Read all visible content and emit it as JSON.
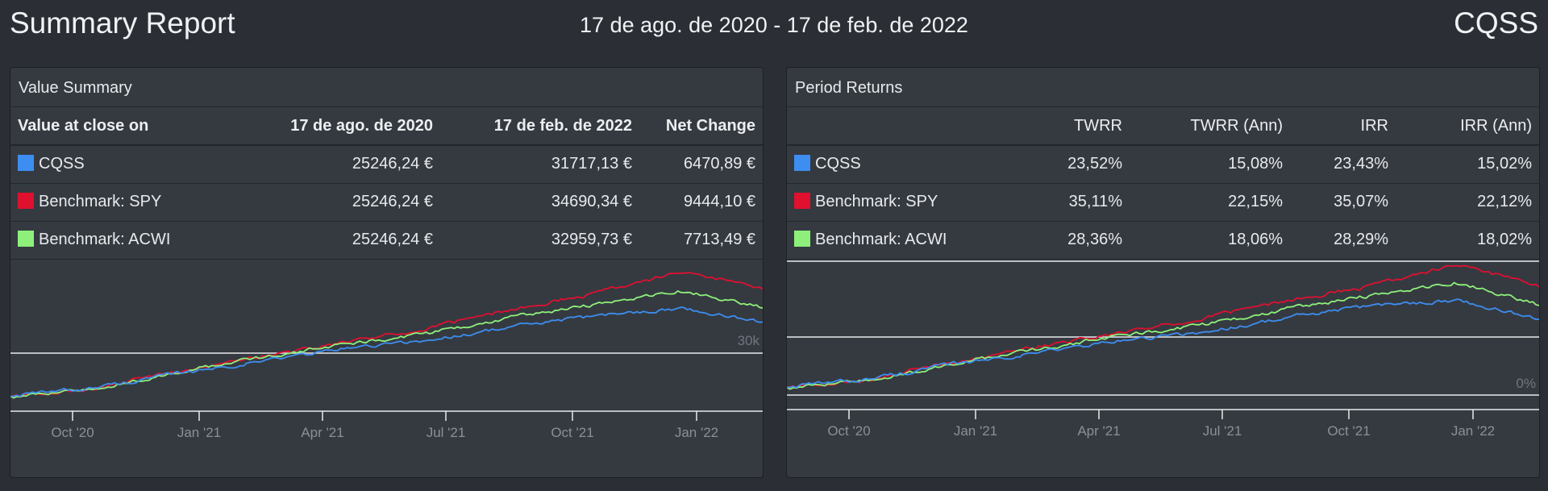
{
  "header": {
    "title": "Summary Report",
    "date_range": "17 de ago. de 2020 - 17 de feb. de 2022",
    "account": "CQSS"
  },
  "value_summary": {
    "title": "Value Summary",
    "columns": [
      "Value at close on",
      "17 de ago. de 2020",
      "17 de feb. de 2022",
      "Net Change"
    ],
    "rows": [
      {
        "name": "CQSS",
        "color": "#3d8ef0",
        "start": "25246,24 €",
        "end": "31717,13 €",
        "change": "6470,89 €"
      },
      {
        "name": "Benchmark: SPY",
        "color": "#e0102f",
        "start": "25246,24 €",
        "end": "34690,34 €",
        "change": "9444,10 €"
      },
      {
        "name": "Benchmark: ACWI",
        "color": "#8ef07a",
        "start": "25246,24 €",
        "end": "32959,73 €",
        "change": "7713,49 €"
      }
    ]
  },
  "period_returns": {
    "title": "Period Returns",
    "columns": [
      "",
      "TWRR",
      "TWRR (Ann)",
      "IRR",
      "IRR (Ann)"
    ],
    "rows": [
      {
        "name": "CQSS",
        "color": "#3d8ef0",
        "twrr": "23,52%",
        "twrr_ann": "15,08%",
        "irr": "23,43%",
        "irr_ann": "15,02%"
      },
      {
        "name": "Benchmark: SPY",
        "color": "#e0102f",
        "twrr": "35,11%",
        "twrr_ann": "22,15%",
        "irr": "35,07%",
        "irr_ann": "22,12%"
      },
      {
        "name": "Benchmark: ACWI",
        "color": "#8ef07a",
        "twrr": "28,36%",
        "twrr_ann": "18,06%",
        "irr": "28,29%",
        "irr_ann": "18,02%"
      }
    ]
  },
  "chart_data": [
    {
      "type": "line",
      "x_tick_labels": [
        "Oct '20",
        "Jan '21",
        "Apr '21",
        "Jul '21",
        "Oct '21",
        "Jan '22"
      ],
      "y_tick_labels": [
        "30k"
      ],
      "x": [
        "2020-08",
        "2020-10",
        "2020-12",
        "2021-02",
        "2021-04",
        "2021-06",
        "2021-08",
        "2021-10",
        "2021-12",
        "2022-02"
      ],
      "series": [
        {
          "name": "CQSS",
          "color": "#3d8ef0",
          "values": [
            25246,
            26000,
            27200,
            28300,
            29400,
            30100,
            31300,
            32200,
            32900,
            31717
          ]
        },
        {
          "name": "Benchmark: SPY",
          "color": "#e0102f",
          "values": [
            25246,
            25900,
            27500,
            28700,
            30000,
            31200,
            32800,
            34200,
            36000,
            34690
          ]
        },
        {
          "name": "Benchmark: ACWI",
          "color": "#8ef07a",
          "values": [
            25246,
            25800,
            27400,
            28600,
            29800,
            30700,
            32100,
            33200,
            34400,
            32960
          ]
        }
      ],
      "grid": true
    },
    {
      "type": "line",
      "x_tick_labels": [
        "Oct '20",
        "Jan '21",
        "Apr '21",
        "Jul '21",
        "Oct '21",
        "Jan '22"
      ],
      "y_tick_labels": [
        "0%"
      ],
      "x": [
        "2020-08",
        "2020-10",
        "2020-12",
        "2021-02",
        "2021-04",
        "2021-06",
        "2021-08",
        "2021-10",
        "2021-12",
        "2022-02"
      ],
      "series": [
        {
          "name": "CQSS",
          "color": "#3d8ef0",
          "values": [
            0,
            3,
            8,
            12,
            16,
            19,
            24,
            28,
            30,
            23.52
          ]
        },
        {
          "name": "Benchmark: SPY",
          "color": "#e0102f",
          "values": [
            0,
            2.6,
            9,
            14,
            19,
            24,
            30,
            35,
            42,
            35.11
          ]
        },
        {
          "name": "Benchmark: ACWI",
          "color": "#8ef07a",
          "values": [
            0,
            2.2,
            8.5,
            13,
            18,
            21.5,
            27,
            31.5,
            36,
            28.36
          ]
        }
      ],
      "grid": true
    }
  ]
}
